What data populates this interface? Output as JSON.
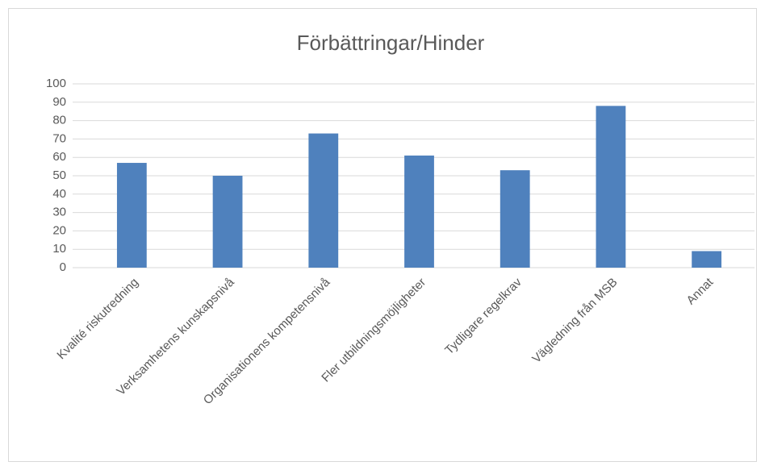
{
  "chart_data": {
    "type": "bar",
    "title": "Förbättringar/Hinder",
    "categories": [
      "Kvalité riskutredning",
      "Verksamhetens kunskapsnivå",
      "Organisationens kompetensnivå",
      "Fler utbildningsmöjligheter",
      "Tydligare regelkrav",
      "Vägledning från MSB",
      "Annat"
    ],
    "values": [
      57,
      50,
      73,
      61,
      53,
      88,
      9
    ],
    "color": "#4f81bd",
    "ylim": [
      0,
      100
    ],
    "yticks": [
      0,
      10,
      20,
      30,
      40,
      50,
      60,
      70,
      80,
      90,
      100
    ],
    "grid": true
  }
}
